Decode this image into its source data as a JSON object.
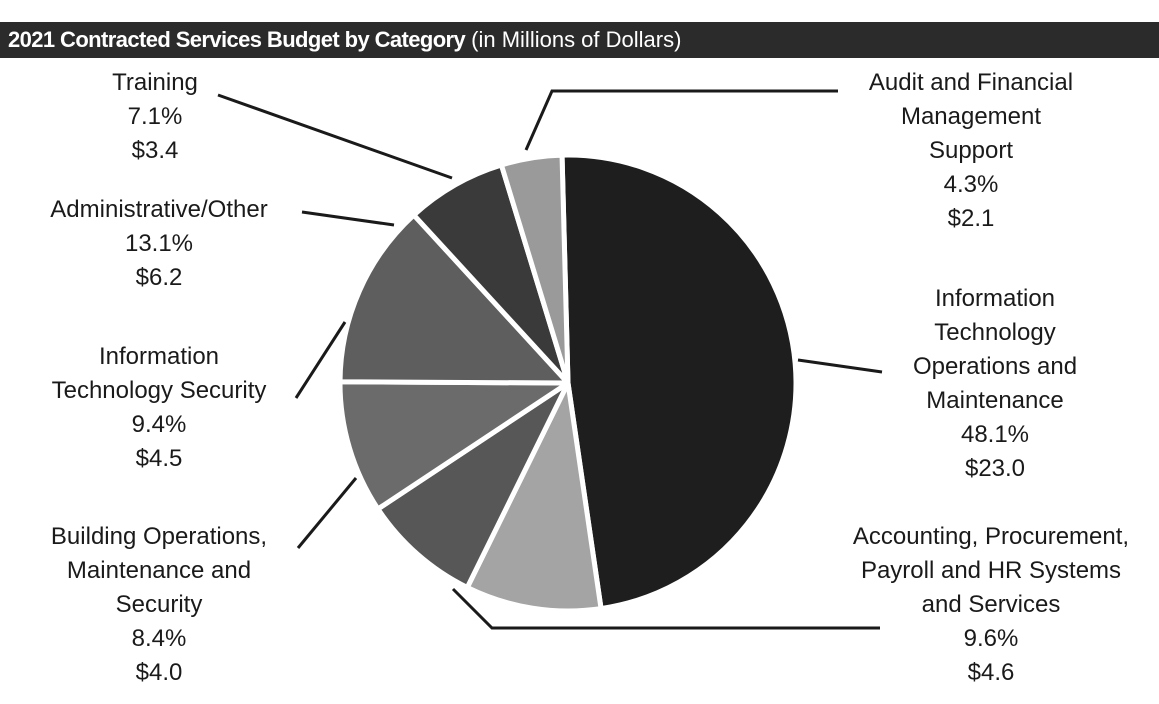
{
  "chart_data": {
    "type": "pie",
    "title": "2021 Contracted Services Budget by Category",
    "subtitle": "(in Millions of Dollars)",
    "slices": [
      {
        "label": "Information Technology Operations and Maintenance",
        "percent": "48.1%",
        "value": 23.0,
        "value_label": "$23.0",
        "color": "#1e1e1e"
      },
      {
        "label": "Accounting, Procurement, Payroll and HR Systems and Services",
        "percent": "9.6%",
        "value": 4.6,
        "value_label": "$4.6",
        "color": "#a4a4a4"
      },
      {
        "label": "Building Operations, Maintenance and Security",
        "percent": "8.4%",
        "value": 4.0,
        "value_label": "$4.0",
        "color": "#575757"
      },
      {
        "label": "Information Technology Security",
        "percent": "9.4%",
        "value": 4.5,
        "value_label": "$4.5",
        "color": "#6b6b6b"
      },
      {
        "label": "Administrative/Other",
        "percent": "13.1%",
        "value": 6.2,
        "value_label": "$6.2",
        "color": "#5e5e5e"
      },
      {
        "label": "Training",
        "percent": "7.1%",
        "value": 3.4,
        "value_label": "$3.4",
        "color": "#3a3a3a"
      },
      {
        "label": "Audit and Financial Management Support",
        "percent": "4.3%",
        "value": 2.1,
        "value_label": "$2.1",
        "color": "#9a9a9a"
      }
    ]
  },
  "labels": {
    "itom": [
      "Information",
      "Technology",
      "Operations and",
      "Maintenance",
      "48.1%",
      "$23.0"
    ],
    "accounting": [
      "Accounting, Procurement,",
      "Payroll and HR Systems",
      "and Services",
      "9.6%",
      "$4.6"
    ],
    "building": [
      "Building Operations,",
      "Maintenance and",
      "Security",
      "8.4%",
      "$4.0"
    ],
    "itsec": [
      "Information",
      "Technology Security",
      "9.4%",
      "$4.5"
    ],
    "admin": [
      "Administrative/Other",
      "13.1%",
      "$6.2"
    ],
    "training": [
      "Training",
      "7.1%",
      "$3.4"
    ],
    "audit": [
      "Audit and Financial",
      "Management",
      "Support",
      "4.3%",
      "$2.1"
    ]
  }
}
